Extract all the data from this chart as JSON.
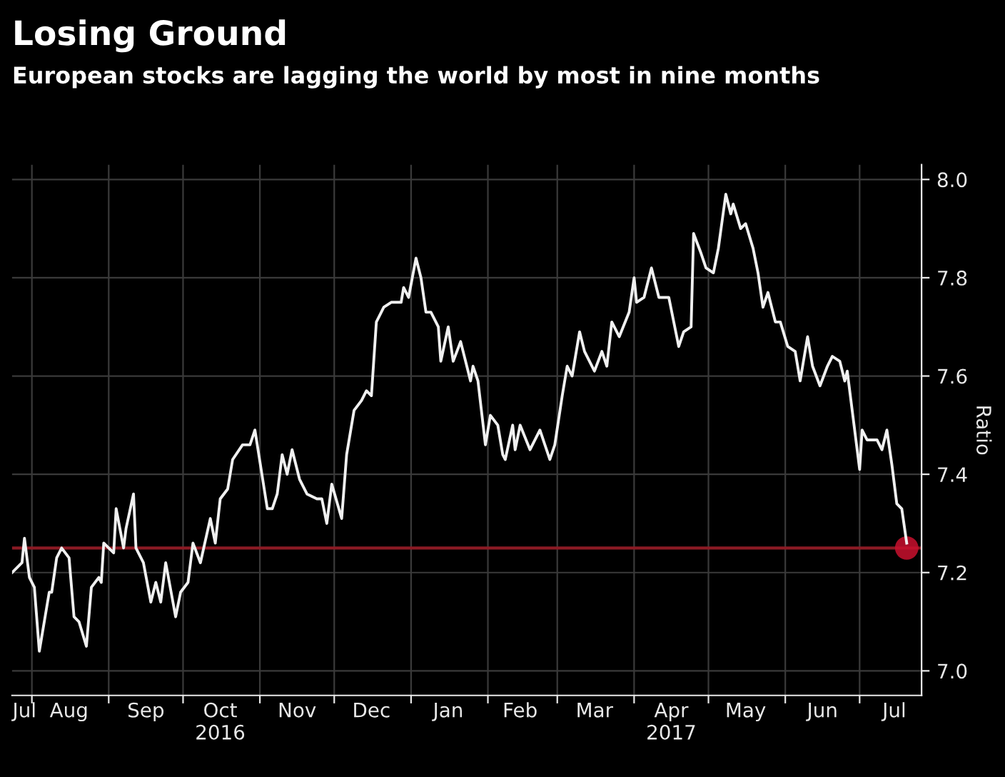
{
  "chart_data": {
    "type": "line",
    "title": "Losing Ground",
    "subtitle": "European stocks are lagging the world by most in nine months",
    "ylabel": "Ratio",
    "xlim": [
      "2016-07-24",
      "2017-07-26"
    ],
    "ylim": [
      6.95,
      8.03
    ],
    "yticks": [
      {
        "value": 7.0,
        "label": "7.0"
      },
      {
        "value": 7.2,
        "label": "7.2"
      },
      {
        "value": 7.4,
        "label": "7.4"
      },
      {
        "value": 7.6,
        "label": "7.6"
      },
      {
        "value": 7.8,
        "label": "7.8"
      },
      {
        "value": 8.0,
        "label": "8.0"
      }
    ],
    "xticks": [
      {
        "value": "2016-08-01",
        "label": null
      },
      {
        "value": "2016-09-01",
        "label": null
      },
      {
        "value": "2016-10-01",
        "label": null
      },
      {
        "value": "2016-11-01",
        "label": null
      },
      {
        "value": "2016-12-01",
        "label": null
      },
      {
        "value": "2017-01-01",
        "label": null
      },
      {
        "value": "2017-02-01",
        "label": null
      },
      {
        "value": "2017-03-01",
        "label": null
      },
      {
        "value": "2017-04-01",
        "label": null
      },
      {
        "value": "2017-05-01",
        "label": null
      },
      {
        "value": "2017-06-01",
        "label": null
      },
      {
        "value": "2017-07-01",
        "label": null
      },
      {
        "value": "2016-07-29",
        "label": "Jul"
      },
      {
        "value": "2016-08-16",
        "label": "Aug"
      },
      {
        "value": "2016-09-16",
        "label": "Sep"
      },
      {
        "value": "2016-10-16",
        "label": "Oct\n2016"
      },
      {
        "value": "2016-11-16",
        "label": "Nov"
      },
      {
        "value": "2016-12-16",
        "label": "Dec"
      },
      {
        "value": "2017-01-16",
        "label": "Jan"
      },
      {
        "value": "2017-02-14",
        "label": "Feb"
      },
      {
        "value": "2017-03-16",
        "label": "Mar"
      },
      {
        "value": "2017-04-16",
        "label": "Apr\n2017"
      },
      {
        "value": "2017-05-16",
        "label": "May"
      },
      {
        "value": "2017-06-16",
        "label": "Jun"
      },
      {
        "value": "2017-07-15",
        "label": "Jul"
      }
    ],
    "grid": true,
    "line_style": "solid",
    "ref_lines": [
      {
        "axis": "y",
        "value": 7.25,
        "label": null,
        "color": "#8b1a24"
      }
    ],
    "series": [
      {
        "color": "#f0f0f0",
        "x": [
          "2016-07-24",
          "2016-07-28",
          "2016-07-29",
          "2016-07-31",
          "2016-08-02",
          "2016-08-04",
          "2016-08-08",
          "2016-08-09",
          "2016-08-11",
          "2016-08-13",
          "2016-08-16",
          "2016-08-18",
          "2016-08-20",
          "2016-08-23",
          "2016-08-25",
          "2016-08-28",
          "2016-08-29",
          "2016-08-30",
          "2016-09-03",
          "2016-09-04",
          "2016-09-07",
          "2016-09-08",
          "2016-09-11",
          "2016-09-12",
          "2016-09-15",
          "2016-09-18",
          "2016-09-20",
          "2016-09-22",
          "2016-09-24",
          "2016-09-28",
          "2016-09-30",
          "2016-10-03",
          "2016-10-05",
          "2016-10-08",
          "2016-10-12",
          "2016-10-14",
          "2016-10-16",
          "2016-10-19",
          "2016-10-21",
          "2016-10-25",
          "2016-10-28",
          "2016-10-30",
          "2016-11-04",
          "2016-11-06",
          "2016-11-08",
          "2016-11-10",
          "2016-11-12",
          "2016-11-14",
          "2016-11-17",
          "2016-11-20",
          "2016-11-24",
          "2016-11-26",
          "2016-11-28",
          "2016-11-30",
          "2016-12-04",
          "2016-12-06",
          "2016-12-09",
          "2016-12-12",
          "2016-12-14",
          "2016-12-16",
          "2016-12-18",
          "2016-12-21",
          "2016-12-24",
          "2016-12-28",
          "2016-12-29",
          "2016-12-31",
          "2017-01-03",
          "2017-01-05",
          "2017-01-07",
          "2017-01-09",
          "2017-01-12",
          "2017-01-13",
          "2017-01-16",
          "2017-01-18",
          "2017-01-21",
          "2017-01-25",
          "2017-01-26",
          "2017-01-28",
          "2017-01-31",
          "2017-02-02",
          "2017-02-05",
          "2017-02-07",
          "2017-02-08",
          "2017-02-11",
          "2017-02-12",
          "2017-02-14",
          "2017-02-18",
          "2017-02-22",
          "2017-02-26",
          "2017-02-28",
          "2017-03-03",
          "2017-03-05",
          "2017-03-07",
          "2017-03-10",
          "2017-03-12",
          "2017-03-16",
          "2017-03-19",
          "2017-03-21",
          "2017-03-23",
          "2017-03-26",
          "2017-03-30",
          "2017-04-01",
          "2017-04-02",
          "2017-04-05",
          "2017-04-08",
          "2017-04-11",
          "2017-04-15",
          "2017-04-19",
          "2017-04-21",
          "2017-04-24",
          "2017-04-25",
          "2017-04-28",
          "2017-04-30",
          "2017-05-03",
          "2017-05-05",
          "2017-05-08",
          "2017-05-10",
          "2017-05-11",
          "2017-05-14",
          "2017-05-16",
          "2017-05-19",
          "2017-05-21",
          "2017-05-23",
          "2017-05-25",
          "2017-05-28",
          "2017-05-30",
          "2017-06-02",
          "2017-06-05",
          "2017-06-07",
          "2017-06-10",
          "2017-06-12",
          "2017-06-15",
          "2017-06-18",
          "2017-06-20",
          "2017-06-23",
          "2017-06-25",
          "2017-06-26",
          "2017-07-01",
          "2017-07-02",
          "2017-07-04",
          "2017-07-08",
          "2017-07-10",
          "2017-07-12",
          "2017-07-14",
          "2017-07-16",
          "2017-07-18",
          "2017-07-20"
        ],
        "values": [
          7.2,
          7.22,
          7.27,
          7.19,
          7.17,
          7.04,
          7.16,
          7.16,
          7.23,
          7.25,
          7.23,
          7.11,
          7.1,
          7.05,
          7.17,
          7.19,
          7.18,
          7.26,
          7.24,
          7.33,
          7.25,
          7.29,
          7.36,
          7.25,
          7.22,
          7.14,
          7.18,
          7.14,
          7.22,
          7.11,
          7.16,
          7.18,
          7.26,
          7.22,
          7.31,
          7.26,
          7.35,
          7.37,
          7.43,
          7.46,
          7.46,
          7.49,
          7.33,
          7.33,
          7.36,
          7.44,
          7.4,
          7.45,
          7.39,
          7.36,
          7.35,
          7.35,
          7.3,
          7.38,
          7.31,
          7.44,
          7.53,
          7.55,
          7.57,
          7.56,
          7.71,
          7.74,
          7.75,
          7.75,
          7.78,
          7.76,
          7.84,
          7.8,
          7.73,
          7.73,
          7.7,
          7.63,
          7.7,
          7.63,
          7.67,
          7.59,
          7.62,
          7.59,
          7.46,
          7.52,
          7.5,
          7.44,
          7.43,
          7.5,
          7.45,
          7.5,
          7.45,
          7.49,
          7.43,
          7.46,
          7.56,
          7.62,
          7.6,
          7.69,
          7.65,
          7.61,
          7.65,
          7.62,
          7.71,
          7.68,
          7.73,
          7.8,
          7.75,
          7.76,
          7.82,
          7.76,
          7.76,
          7.66,
          7.69,
          7.7,
          7.89,
          7.85,
          7.82,
          7.81,
          7.86,
          7.97,
          7.93,
          7.95,
          7.9,
          7.91,
          7.86,
          7.81,
          7.74,
          7.77,
          7.71,
          7.71,
          7.66,
          7.65,
          7.59,
          7.68,
          7.62,
          7.58,
          7.62,
          7.64,
          7.63,
          7.59,
          7.61,
          7.41,
          7.49,
          7.47,
          7.47,
          7.45,
          7.49,
          7.42,
          7.34,
          7.33,
          7.26
        ]
      },
      {
        "type": "scatter",
        "color": "#c8102e",
        "marker": "circle",
        "x": [
          "2017-07-20"
        ],
        "values": [
          7.25
        ]
      }
    ]
  }
}
